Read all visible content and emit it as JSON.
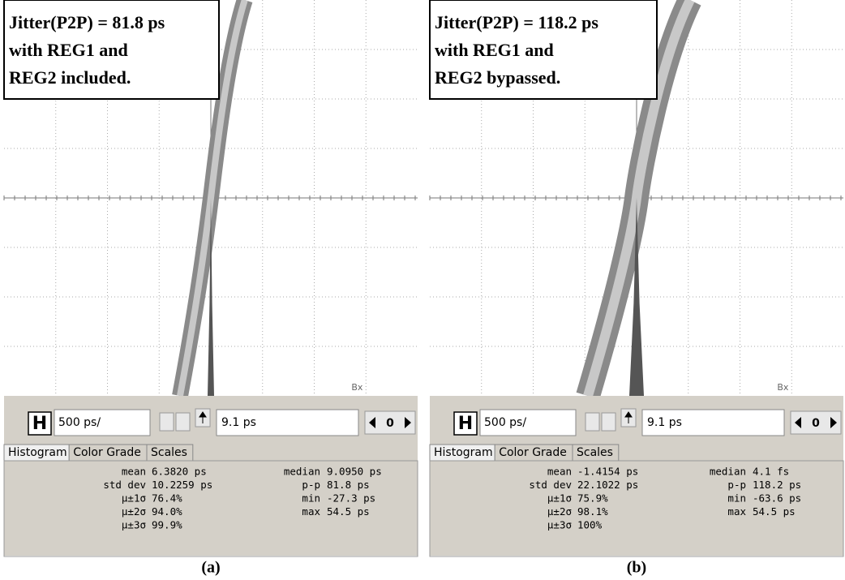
{
  "panels": [
    {
      "annotation": [
        "Jitter(P2P) = 81.8 ps",
        "with REG1 and",
        "REG2 included."
      ],
      "marker": "Bx",
      "toolbar": {
        "button": "H",
        "scale": "500 ps/",
        "position": "9.1 ps",
        "counter": "0"
      },
      "tabs": [
        "Histogram",
        "Color Grade",
        "Scales"
      ],
      "stats_left": [
        [
          "mean",
          "6.3820 ps"
        ],
        [
          "std dev",
          "10.2259 ps"
        ],
        [
          "µ±1σ",
          "76.4%"
        ],
        [
          "µ±2σ",
          "94.0%"
        ],
        [
          "µ±3σ",
          "99.9%"
        ]
      ],
      "stats_right": [
        [
          "median",
          "9.0950 ps"
        ],
        [
          "p-p",
          "81.8 ps"
        ],
        [
          "min",
          "-27.3 ps"
        ],
        [
          "max",
          "54.5 ps"
        ]
      ],
      "caption": "(a)"
    },
    {
      "annotation": [
        "Jitter(P2P) = 118.2 ps",
        "with REG1 and",
        "REG2 bypassed."
      ],
      "marker": "Bx",
      "toolbar": {
        "button": "H",
        "scale": "500 ps/",
        "position": "9.1 ps",
        "counter": "0"
      },
      "tabs": [
        "Histogram",
        "Color Grade",
        "Scales"
      ],
      "stats_left": [
        [
          "mean",
          "-1.4154 ps"
        ],
        [
          "std dev",
          "22.1022 ps"
        ],
        [
          "µ±1σ",
          "75.9%"
        ],
        [
          "µ±2σ",
          "98.1%"
        ],
        [
          "µ±3σ",
          "100%"
        ]
      ],
      "stats_right": [
        [
          "median",
          "4.1 fs"
        ],
        [
          "p-p",
          "118.2 ps"
        ],
        [
          "min",
          "-63.6 ps"
        ],
        [
          "max",
          "54.5 ps"
        ]
      ],
      "caption": "(b)"
    }
  ]
}
